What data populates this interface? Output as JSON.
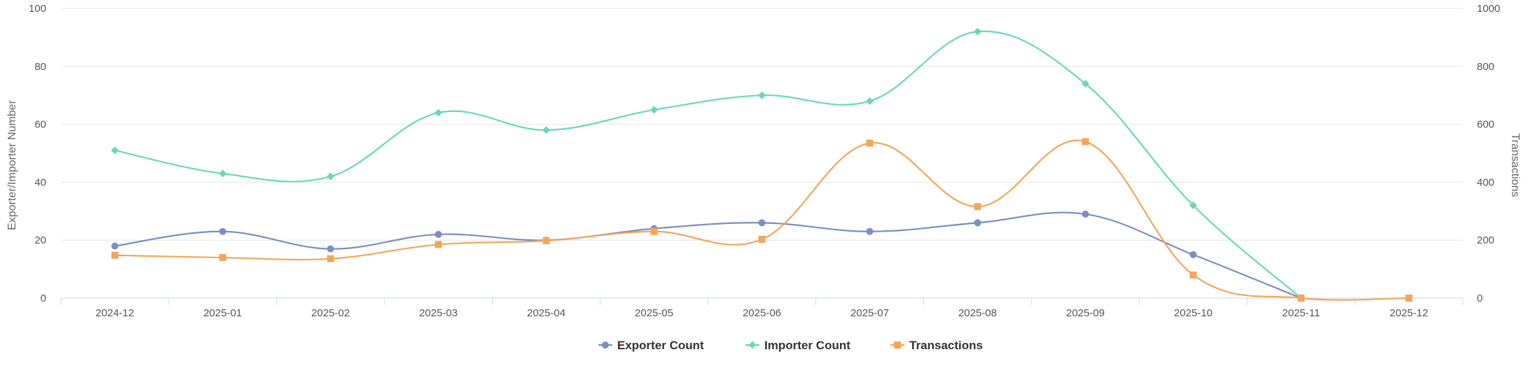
{
  "chart_data": {
    "type": "line",
    "title": "",
    "categories": [
      "2024-12",
      "2025-01",
      "2025-02",
      "2025-03",
      "2025-04",
      "2025-05",
      "2025-06",
      "2025-07",
      "2025-08",
      "2025-09",
      "2025-10",
      "2025-11",
      "2025-12"
    ],
    "y_left": {
      "label": "Exporter/Importer Number",
      "min": 0,
      "max": 100,
      "ticks": [
        0,
        20,
        40,
        60,
        80,
        100
      ]
    },
    "y_right": {
      "label": "Transactions",
      "min": 0,
      "max": 1000,
      "ticks": [
        0,
        200,
        400,
        600,
        800,
        1000
      ]
    },
    "grid": true,
    "legend_position": "bottom-center",
    "series": [
      {
        "name": "Exporter Count",
        "axis": "left",
        "color": "#7b8fbf",
        "marker": "circle",
        "values": [
          18,
          23,
          17,
          22,
          20,
          24,
          26,
          23,
          26,
          29,
          15,
          0,
          null
        ]
      },
      {
        "name": "Importer Count",
        "axis": "left",
        "color": "#6ad8b2",
        "marker": "diamond",
        "values": [
          51,
          43,
          42,
          64,
          58,
          65,
          70,
          68,
          92,
          74,
          32,
          0,
          null
        ]
      },
      {
        "name": "Transactions",
        "axis": "right",
        "color": "#f2a65a",
        "marker": "square",
        "values": [
          148,
          140,
          136,
          185,
          198,
          230,
          203,
          535,
          316,
          540,
          80,
          0,
          0
        ]
      }
    ]
  }
}
